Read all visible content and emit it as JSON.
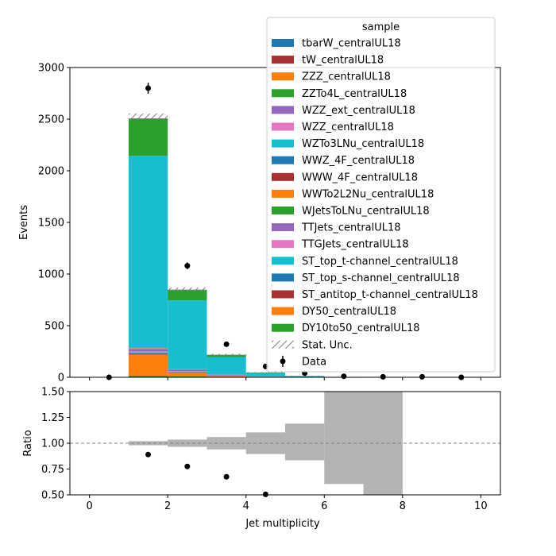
{
  "chart_data": [
    {
      "type": "bar",
      "stacked": true,
      "xlabel": "",
      "ylabel": "Events",
      "xlim": [
        -0.5,
        10.5
      ],
      "ylim": [
        0,
        3000
      ],
      "yticks": [
        0,
        500,
        1000,
        1500,
        2000,
        2500,
        3000
      ],
      "bins": [
        [
          1,
          2
        ],
        [
          2,
          3
        ],
        [
          3,
          4
        ],
        [
          4,
          5
        ],
        [
          5,
          6
        ],
        [
          6,
          7
        ],
        [
          7,
          8
        ]
      ],
      "series": [
        {
          "name": "DY10to50_centralUL18",
          "color": "#2ca02c",
          "values": [
            15,
            8,
            3,
            1,
            0,
            0,
            0
          ]
        },
        {
          "name": "DY50_centralUL18",
          "color": "#ff7f0e",
          "values": [
            205,
            40,
            10,
            4,
            1,
            0,
            0
          ]
        },
        {
          "name": "ST_antitop_t-channel_centralUL18",
          "color": "#a83232",
          "values": [
            8,
            3,
            1,
            0,
            0,
            0,
            0
          ]
        },
        {
          "name": "ST_top_s-channel_centralUL18",
          "color": "#1f77b4",
          "values": [
            8,
            3,
            1,
            0,
            0,
            0,
            0
          ]
        },
        {
          "name": "ST_top_t-channel_centralUL18",
          "color": "#17becf",
          "values": [
            5,
            2,
            1,
            0,
            0,
            0,
            0
          ]
        },
        {
          "name": "TTGJets_centralUL18",
          "color": "#e377c2",
          "values": [
            10,
            5,
            2,
            1,
            0,
            0,
            0
          ]
        },
        {
          "name": "TTJets_centralUL18",
          "color": "#9467bd",
          "values": [
            20,
            12,
            8,
            4,
            2,
            1,
            0
          ]
        },
        {
          "name": "WJetsToLNu_centralUL18",
          "color": "#2ca02c",
          "values": [
            5,
            2,
            1,
            0,
            0,
            0,
            0
          ]
        },
        {
          "name": "WWTo2L2Nu_centralUL18",
          "color": "#ff7f0e",
          "values": [
            6,
            2,
            1,
            0,
            0,
            0,
            0
          ]
        },
        {
          "name": "WWW_4F_centralUL18",
          "color": "#a83232",
          "values": [
            0,
            0,
            0,
            0,
            0,
            0,
            0
          ]
        },
        {
          "name": "WWZ_4F_centralUL18",
          "color": "#1f77b4",
          "values": [
            1,
            1,
            0,
            0,
            0,
            0,
            0
          ]
        },
        {
          "name": "WZTo3LNu_centralUL18",
          "color": "#17becf",
          "values": [
            1862,
            667,
            168,
            32,
            9,
            3,
            1
          ]
        },
        {
          "name": "WZZ_centralUL18",
          "color": "#e377c2",
          "values": [
            0,
            0,
            0,
            0,
            0,
            0,
            0
          ]
        },
        {
          "name": "WZZ_ext_centralUL18",
          "color": "#9467bd",
          "values": [
            0,
            0,
            0,
            0,
            0,
            0,
            0
          ]
        },
        {
          "name": "ZZTo4L_centralUL18",
          "color": "#2ca02c",
          "values": [
            355,
            100,
            20,
            4,
            1,
            0,
            0
          ]
        },
        {
          "name": "ZZZ_centralUL18",
          "color": "#ff7f0e",
          "values": [
            1,
            0,
            0,
            0,
            0,
            0,
            0
          ]
        },
        {
          "name": "tW_centralUL18",
          "color": "#a83232",
          "values": [
            3,
            2,
            1,
            0,
            0,
            0,
            0
          ]
        },
        {
          "name": "tbarW_centralUL18",
          "color": "#1f77b4",
          "values": [
            3,
            2,
            1,
            0,
            0,
            0,
            0
          ]
        }
      ],
      "stat_unc": [
        {
          "x0": 1,
          "x1": 2,
          "down": 2500,
          "up": 2555
        },
        {
          "x0": 2,
          "x1": 3,
          "down": 833,
          "up": 870
        },
        {
          "x0": 3,
          "x1": 4,
          "down": 210,
          "up": 228
        },
        {
          "x0": 4,
          "x1": 5,
          "down": 43,
          "up": 50
        },
        {
          "x0": 5,
          "x1": 6,
          "down": 11,
          "up": 15
        },
        {
          "x0": 6,
          "x1": 7,
          "down": 3,
          "up": 5
        },
        {
          "x0": 7,
          "x1": 8,
          "down": 0.5,
          "up": 1.5
        }
      ],
      "data": {
        "name": "Data",
        "x": [
          0.5,
          1.5,
          2.5,
          3.5,
          4.5,
          5.5,
          6.5,
          7.5,
          8.5,
          9.5
        ],
        "y": [
          0,
          2800,
          1080,
          320,
          105,
          40,
          10,
          5,
          5,
          0
        ],
        "yerr": [
          0,
          53,
          33,
          18,
          10,
          6,
          3,
          2,
          2,
          0
        ]
      },
      "legend": {
        "title": "sample",
        "placement": "upper-right",
        "entries": [
          {
            "label": "tbarW_centralUL18",
            "kind": "patch",
            "color": "#1f77b4"
          },
          {
            "label": "tW_centralUL18",
            "kind": "patch",
            "color": "#a83232"
          },
          {
            "label": "ZZZ_centralUL18",
            "kind": "patch",
            "color": "#ff7f0e"
          },
          {
            "label": "ZZTo4L_centralUL18",
            "kind": "patch",
            "color": "#2ca02c"
          },
          {
            "label": "WZZ_ext_centralUL18",
            "kind": "patch",
            "color": "#9467bd"
          },
          {
            "label": "WZZ_centralUL18",
            "kind": "patch",
            "color": "#e377c2"
          },
          {
            "label": "WZTo3LNu_centralUL18",
            "kind": "patch",
            "color": "#17becf"
          },
          {
            "label": "WWZ_4F_centralUL18",
            "kind": "patch",
            "color": "#1f77b4"
          },
          {
            "label": "WWW_4F_centralUL18",
            "kind": "patch",
            "color": "#a83232"
          },
          {
            "label": "WWTo2L2Nu_centralUL18",
            "kind": "patch",
            "color": "#ff7f0e"
          },
          {
            "label": "WJetsToLNu_centralUL18",
            "kind": "patch",
            "color": "#2ca02c"
          },
          {
            "label": "TTJets_centralUL18",
            "kind": "patch",
            "color": "#9467bd"
          },
          {
            "label": "TTGJets_centralUL18",
            "kind": "patch",
            "color": "#e377c2"
          },
          {
            "label": "ST_top_t-channel_centralUL18",
            "kind": "patch",
            "color": "#17becf"
          },
          {
            "label": "ST_top_s-channel_centralUL18",
            "kind": "patch",
            "color": "#1f77b4"
          },
          {
            "label": "ST_antitop_t-channel_centralUL18",
            "kind": "patch",
            "color": "#a83232"
          },
          {
            "label": "DY50_centralUL18",
            "kind": "patch",
            "color": "#ff7f0e"
          },
          {
            "label": "DY10to50_centralUL18",
            "kind": "patch",
            "color": "#2ca02c"
          },
          {
            "label": "Stat. Unc.",
            "kind": "hatch",
            "color": "#808080"
          },
          {
            "label": "Data",
            "kind": "errorbar",
            "color": "#000000"
          }
        ]
      }
    },
    {
      "type": "bar",
      "xlabel": "Jet multiplicity",
      "ylabel": "Ratio",
      "xlim": [
        -0.5,
        10.5
      ],
      "ylim": [
        0.5,
        1.5
      ],
      "xticks": [
        0,
        2,
        4,
        6,
        8,
        10
      ],
      "yticks": [
        0.5,
        0.75,
        1.0,
        1.25,
        1.5
      ],
      "ytick_labels": [
        "0.50",
        "0.75",
        "1.00",
        "1.25",
        "1.50"
      ],
      "reference_line": 1.0,
      "unc_band": {
        "color": "#b3b3b3",
        "bins": [
          {
            "x0": 1,
            "x1": 2,
            "low": 0.98,
            "high": 1.02
          },
          {
            "x0": 2,
            "x1": 3,
            "low": 0.965,
            "high": 1.035
          },
          {
            "x0": 3,
            "x1": 4,
            "low": 0.94,
            "high": 1.06
          },
          {
            "x0": 4,
            "x1": 5,
            "low": 0.895,
            "high": 1.105
          },
          {
            "x0": 5,
            "x1": 6,
            "low": 0.835,
            "high": 1.19
          },
          {
            "x0": 6,
            "x1": 7,
            "low": 0.605,
            "high": 1.5
          },
          {
            "x0": 7,
            "x1": 8,
            "low": 0.5,
            "high": 1.5
          }
        ]
      },
      "points": {
        "x": [
          1.5,
          2.5,
          3.5,
          4.5
        ],
        "y": [
          0.89,
          0.775,
          0.675,
          0.505
        ]
      }
    }
  ]
}
